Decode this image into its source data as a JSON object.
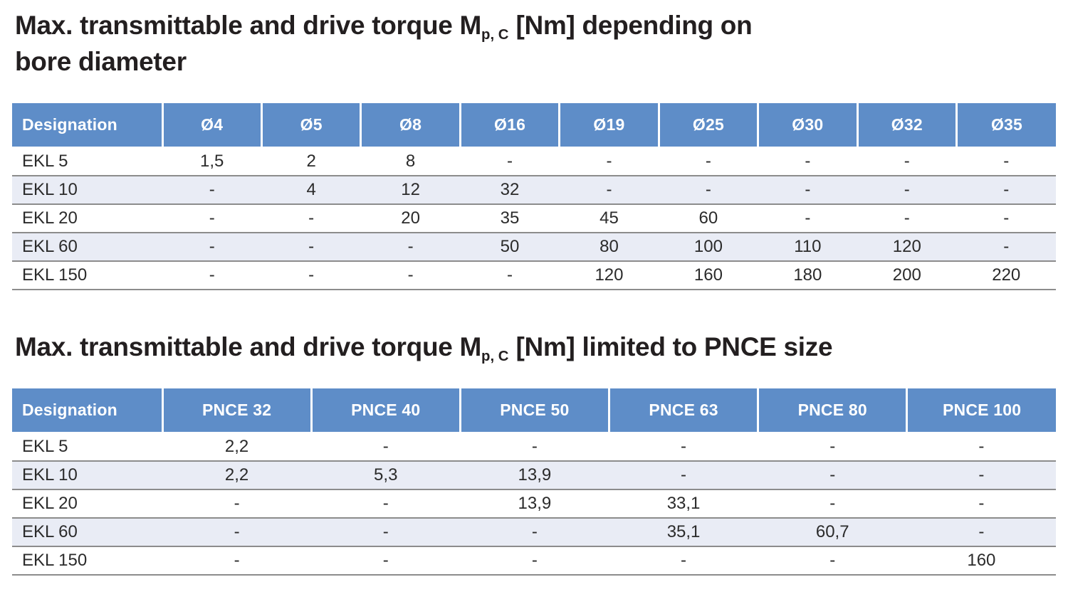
{
  "colors": {
    "header_bg": "#5e8dc8",
    "header_text": "#ffffff",
    "stripe_bg": "#e9ecf5",
    "row_divider": "#8c8c8c",
    "title_text": "#231f20",
    "body_text": "#2b2b2b",
    "page_bg": "#ffffff"
  },
  "tables": [
    {
      "title": {
        "pre": "Max. transmittable and drive torque M",
        "sub": "p, C",
        "post": " [Nm] depending on",
        "line2": "bore diameter"
      },
      "columns": [
        "Designation",
        "Ø4",
        "Ø5",
        "Ø8",
        "Ø16",
        "Ø19",
        "Ø25",
        "Ø30",
        "Ø32",
        "Ø35"
      ],
      "rows": [
        [
          "EKL 5",
          "1,5",
          "2",
          "8",
          "-",
          "-",
          "-",
          "-",
          "-",
          "-"
        ],
        [
          "EKL 10",
          "-",
          "4",
          "12",
          "32",
          "-",
          "-",
          "-",
          "-",
          "-"
        ],
        [
          "EKL 20",
          "-",
          "-",
          "20",
          "35",
          "45",
          "60",
          "-",
          "-",
          "-"
        ],
        [
          "EKL 60",
          "-",
          "-",
          "-",
          "50",
          "80",
          "100",
          "110",
          "120",
          "-"
        ],
        [
          "EKL 150",
          "-",
          "-",
          "-",
          "-",
          "120",
          "160",
          "180",
          "200",
          "220"
        ]
      ]
    },
    {
      "title": {
        "pre": "Max. transmittable and drive torque M",
        "sub": "p, C",
        "post": " [Nm] limited to PNCE size",
        "line2": ""
      },
      "columns": [
        "Designation",
        "PNCE 32",
        "PNCE 40",
        "PNCE 50",
        "PNCE 63",
        "PNCE 80",
        "PNCE 100"
      ],
      "rows": [
        [
          "EKL 5",
          "2,2",
          "-",
          "-",
          "-",
          "-",
          "-"
        ],
        [
          "EKL 10",
          "2,2",
          "5,3",
          "13,9",
          "-",
          "-",
          "-"
        ],
        [
          "EKL 20",
          "-",
          "-",
          "13,9",
          "33,1",
          "-",
          "-"
        ],
        [
          "EKL 60",
          "-",
          "-",
          "-",
          "35,1",
          "60,7",
          "-"
        ],
        [
          "EKL 150",
          "-",
          "-",
          "-",
          "-",
          "-",
          "160"
        ]
      ]
    }
  ]
}
